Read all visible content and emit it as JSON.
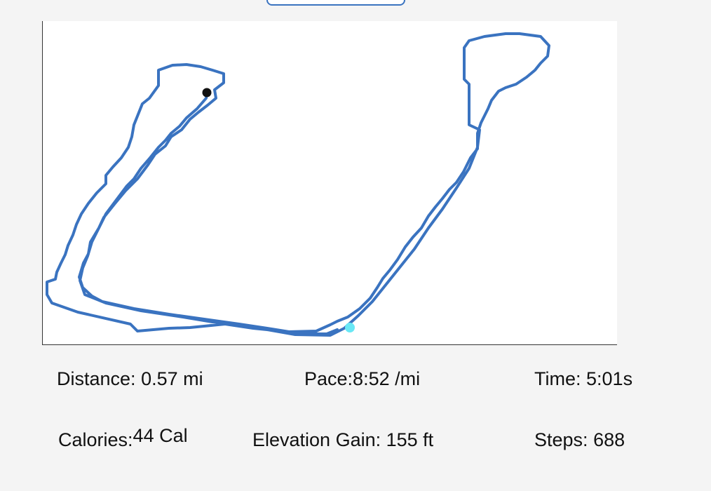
{
  "colors": {
    "route": "#3a73c0",
    "start_marker": "#69e8f5",
    "end_marker": "#111111",
    "background": "#f4f4f4",
    "map_background": "#ffffff"
  },
  "stats": {
    "distance": {
      "label": "Distance:",
      "value": "0.57 mi"
    },
    "pace": {
      "label": "Pace:",
      "value": "8:52 /mi"
    },
    "time": {
      "label": "Time:",
      "value": "5:01s"
    },
    "calories": {
      "label": "Calories:",
      "value": "44 Cal"
    },
    "elevation_gain": {
      "label": "Elevation Gain:",
      "value": "155 ft"
    },
    "steps": {
      "label": "Steps:",
      "value": "688"
    }
  }
}
